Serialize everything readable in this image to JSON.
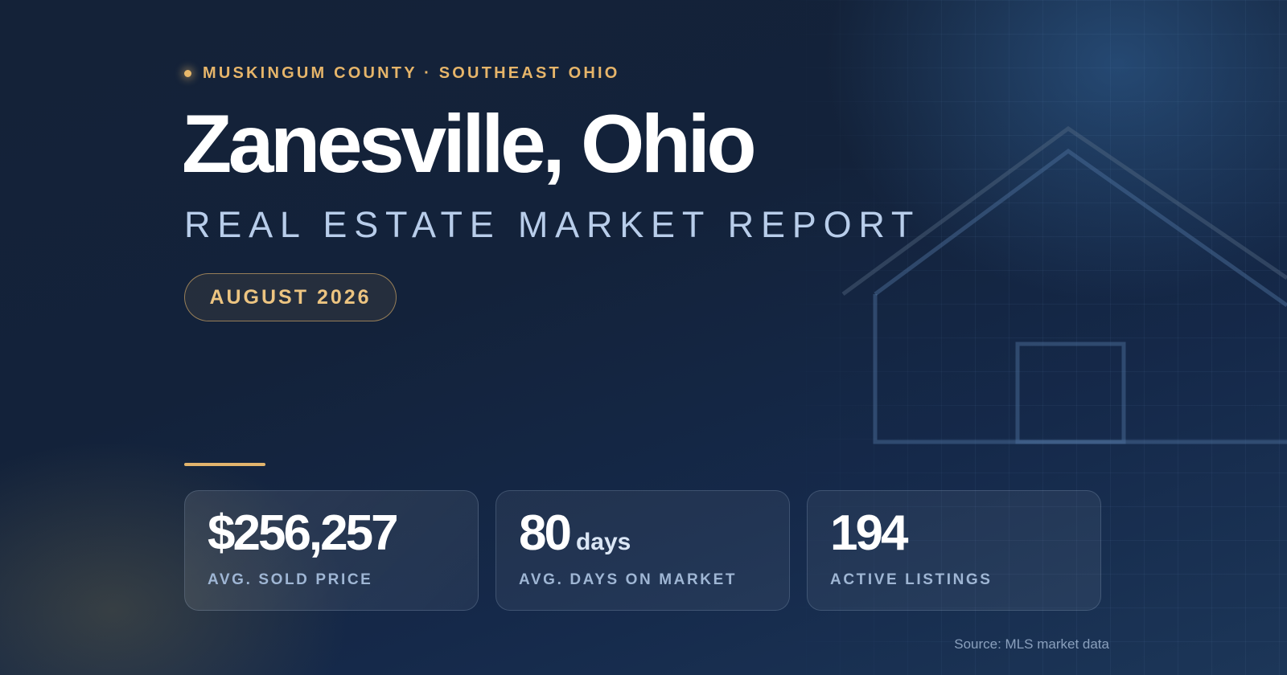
{
  "header": {
    "eyebrow": "MUSKINGUM COUNTY · SOUTHEAST OHIO",
    "title": "Zanesville, Ohio",
    "subtitle": "REAL ESTATE MARKET REPORT",
    "date": "AUGUST 2026"
  },
  "stats": [
    {
      "value": "$256,257",
      "unit": "",
      "label": "AVG. SOLD PRICE"
    },
    {
      "value": "80",
      "unit": "days",
      "label": "AVG. DAYS ON MARKET"
    },
    {
      "value": "194",
      "unit": "",
      "label": "ACTIVE LISTINGS"
    }
  ],
  "footer": {
    "source": "Source: MLS market data"
  },
  "colors": {
    "background": "#13223a",
    "accent_gold": "#e6b56a",
    "subtitle_blue": "#b8cdea",
    "label_blue": "#9fb6d4"
  },
  "icons": {
    "bullet": "dot-icon",
    "illustration": "house-outline-icon"
  }
}
